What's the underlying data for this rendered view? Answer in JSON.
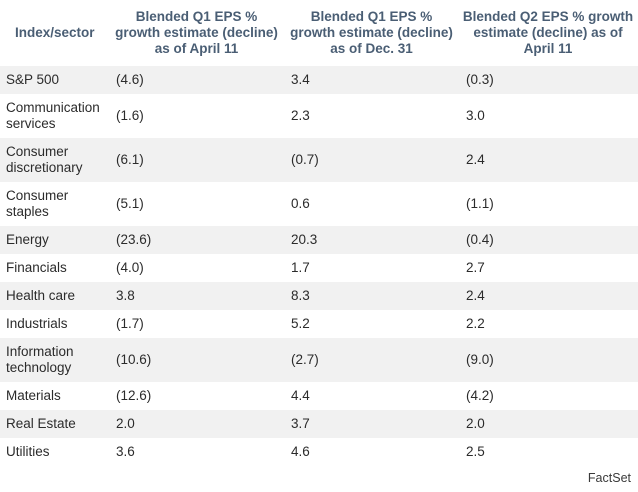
{
  "table": {
    "headers": [
      "Index/sector",
      "Blended Q1 EPS % growth estimate (decline) as of April 11",
      "Blended Q1 EPS % growth estimate (decline) as of Dec. 31",
      "Blended Q2 EPS % growth estimate (decline) as of April 11"
    ],
    "rows": [
      {
        "sector": "S&P 500",
        "q1_apr11": "(4.6)",
        "q1_dec31": "3.4",
        "q2_apr11": "(0.3)"
      },
      {
        "sector": "Communication services",
        "q1_apr11": "(1.6)",
        "q1_dec31": "2.3",
        "q2_apr11": "3.0"
      },
      {
        "sector": "Consumer discretionary",
        "q1_apr11": "(6.1)",
        "q1_dec31": "(0.7)",
        "q2_apr11": "2.4"
      },
      {
        "sector": "Consumer staples",
        "q1_apr11": "(5.1)",
        "q1_dec31": "0.6",
        "q2_apr11": "(1.1)"
      },
      {
        "sector": "Energy",
        "q1_apr11": "(23.6)",
        "q1_dec31": "20.3",
        "q2_apr11": "(0.4)"
      },
      {
        "sector": "Financials",
        "q1_apr11": "(4.0)",
        "q1_dec31": "1.7",
        "q2_apr11": "2.7"
      },
      {
        "sector": "Health care",
        "q1_apr11": "3.8",
        "q1_dec31": "8.3",
        "q2_apr11": "2.4"
      },
      {
        "sector": "Industrials",
        "q1_apr11": "(1.7)",
        "q1_dec31": "5.2",
        "q2_apr11": "2.2"
      },
      {
        "sector": "Information technology",
        "q1_apr11": "(10.6)",
        "q1_dec31": "(2.7)",
        "q2_apr11": "(9.0)"
      },
      {
        "sector": "Materials",
        "q1_apr11": "(12.6)",
        "q1_dec31": "4.4",
        "q2_apr11": "(4.2)"
      },
      {
        "sector": "Real Estate",
        "q1_apr11": "2.0",
        "q1_dec31": "3.7",
        "q2_apr11": "2.0"
      },
      {
        "sector": "Utilities",
        "q1_apr11": "3.6",
        "q1_dec31": "4.6",
        "q2_apr11": "2.5"
      }
    ]
  },
  "source": "FactSet"
}
